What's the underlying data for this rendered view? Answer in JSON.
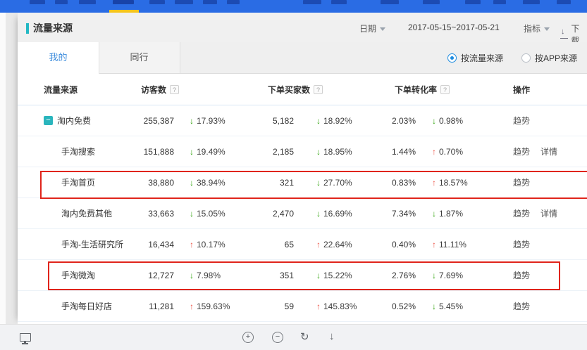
{
  "header": {
    "title": "流量来源",
    "date_label": "日期",
    "date_value": "2017-05-15~2017-05-21",
    "metric_label": "指标",
    "download_label": "下载"
  },
  "tabs": {
    "mine": "我的",
    "peer": "同行"
  },
  "view_toggle": {
    "by_traffic": "按流量来源",
    "by_app": "按APP来源"
  },
  "glyphs": {
    "up": "↑",
    "down": "↓",
    "collapse": "−",
    "plus": "+",
    "minus": "−",
    "rotate": "↻",
    "down_arrow": "↓",
    "help": "?"
  },
  "accent_colors": {
    "topbar": "#2a6ce4",
    "indicator": "#f5c51d",
    "title_accent": "#23b8c4",
    "up_red": "#ee574a",
    "down_green": "#2fa30c",
    "highlight_box": "#e0241b"
  },
  "table": {
    "headers": {
      "source": "流量来源",
      "visitors": "访客数",
      "buyers": "下单买家数",
      "conversion": "下单转化率",
      "action": "操作"
    },
    "rows": [
      {
        "name": "淘内免费",
        "expandable": true,
        "visitors": "255,387",
        "visitors_trend": {
          "dir": "down",
          "value": "17.93%"
        },
        "buyers": "5,182",
        "buyers_trend": {
          "dir": "down",
          "value": "18.92%"
        },
        "conversion": "2.03%",
        "conversion_trend": {
          "dir": "down",
          "value": "0.98%"
        },
        "actions": [
          "趋势"
        ],
        "highlight": null
      },
      {
        "name": "手淘搜索",
        "expandable": false,
        "visitors": "151,888",
        "visitors_trend": {
          "dir": "down",
          "value": "19.49%"
        },
        "buyers": "2,185",
        "buyers_trend": {
          "dir": "down",
          "value": "18.95%"
        },
        "conversion": "1.44%",
        "conversion_trend": {
          "dir": "up",
          "value": "0.70%"
        },
        "actions": [
          "趋势",
          "详情"
        ],
        "highlight": null
      },
      {
        "name": "手淘首页",
        "expandable": false,
        "visitors": "38,880",
        "visitors_trend": {
          "dir": "down",
          "value": "38.94%"
        },
        "buyers": "321",
        "buyers_trend": {
          "dir": "down",
          "value": "27.70%"
        },
        "conversion": "0.83%",
        "conversion_trend": {
          "dir": "up",
          "value": "18.57%"
        },
        "actions": [
          "趋势"
        ],
        "highlight": "wide"
      },
      {
        "name": "淘内免费其他",
        "expandable": false,
        "visitors": "33,663",
        "visitors_trend": {
          "dir": "down",
          "value": "15.05%"
        },
        "buyers": "2,470",
        "buyers_trend": {
          "dir": "down",
          "value": "16.69%"
        },
        "conversion": "7.34%",
        "conversion_trend": {
          "dir": "down",
          "value": "1.87%"
        },
        "actions": [
          "趋势",
          "详情"
        ],
        "highlight": null
      },
      {
        "name": "手淘-生活研究所",
        "expandable": false,
        "visitors": "16,434",
        "visitors_trend": {
          "dir": "up",
          "value": "10.17%"
        },
        "buyers": "65",
        "buyers_trend": {
          "dir": "up",
          "value": "22.64%"
        },
        "conversion": "0.40%",
        "conversion_trend": {
          "dir": "up",
          "value": "11.11%"
        },
        "actions": [
          "趋势"
        ],
        "highlight": null
      },
      {
        "name": "手淘微淘",
        "expandable": false,
        "visitors": "12,727",
        "visitors_trend": {
          "dir": "down",
          "value": "7.98%"
        },
        "buyers": "351",
        "buyers_trend": {
          "dir": "down",
          "value": "15.22%"
        },
        "conversion": "2.76%",
        "conversion_trend": {
          "dir": "down",
          "value": "7.69%"
        },
        "actions": [
          "趋势"
        ],
        "highlight": "narrow"
      },
      {
        "name": "手淘每日好店",
        "expandable": false,
        "visitors": "11,281",
        "visitors_trend": {
          "dir": "up",
          "value": "159.63%"
        },
        "buyers": "59",
        "buyers_trend": {
          "dir": "up",
          "value": "145.83%"
        },
        "conversion": "0.52%",
        "conversion_trend": {
          "dir": "down",
          "value": "5.45%"
        },
        "actions": [
          "趋势"
        ],
        "highlight": null
      }
    ]
  }
}
